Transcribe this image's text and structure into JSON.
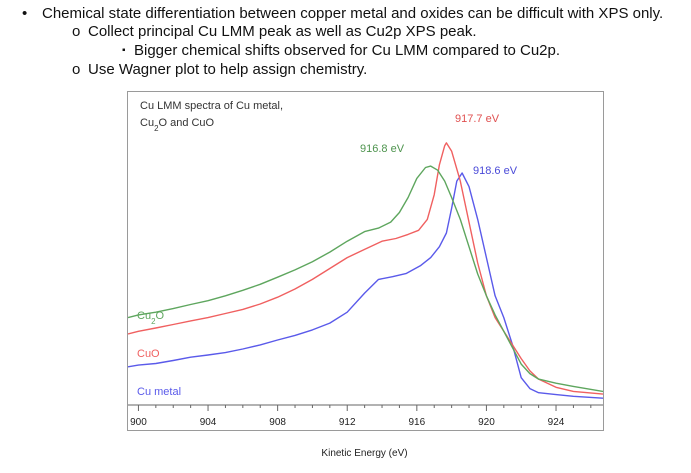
{
  "bullets": [
    {
      "marker": "•",
      "text": "Chemical state differentiation between copper metal and oxides can be difficult with XPS only."
    },
    {
      "marker": "o",
      "text": "Collect principal Cu LMM peak as well as Cu2p XPS peak."
    },
    {
      "marker": "▪",
      "text": "Bigger chemical shifts observed for Cu LMM compared to Cu2p."
    },
    {
      "marker": "o",
      "text": "Use Wagner plot to help assign chemistry."
    }
  ],
  "chart_data": {
    "type": "line",
    "title_line1": "Cu LMM spectra of Cu metal,",
    "title_line2_a": "Cu",
    "title_line2_sub": "2",
    "title_line2_b": "O and CuO",
    "xlabel": "Kinetic Energy (eV)",
    "ylabel": "",
    "xlim": [
      899.4,
      926.7
    ],
    "ylim": [
      0,
      100
    ],
    "xticks": [
      900,
      904,
      908,
      912,
      916,
      920,
      924
    ],
    "grid": false,
    "series": [
      {
        "name": "Cu metal",
        "color": "#5a5aea",
        "points": [
          [
            899.4,
            14
          ],
          [
            900,
            14.6
          ],
          [
            901,
            15.2
          ],
          [
            902,
            16.3
          ],
          [
            903,
            17.5
          ],
          [
            904,
            18.3
          ],
          [
            905,
            19.2
          ],
          [
            906,
            20.5
          ],
          [
            907,
            22
          ],
          [
            908,
            23.8
          ],
          [
            909,
            25.5
          ],
          [
            910,
            27.5
          ],
          [
            911,
            30
          ],
          [
            912,
            34
          ],
          [
            913,
            41
          ],
          [
            913.8,
            46
          ],
          [
            914.6,
            47
          ],
          [
            915.4,
            48.2
          ],
          [
            916.2,
            51
          ],
          [
            916.8,
            54
          ],
          [
            917.3,
            58
          ],
          [
            917.7,
            63
          ],
          [
            918,
            72
          ],
          [
            918.3,
            82
          ],
          [
            918.6,
            85
          ],
          [
            919,
            80
          ],
          [
            919.5,
            68
          ],
          [
            920,
            54
          ],
          [
            920.5,
            40
          ],
          [
            921,
            32
          ],
          [
            921.5,
            22
          ],
          [
            922,
            10
          ],
          [
            922.5,
            6
          ],
          [
            923,
            4.5
          ],
          [
            924,
            3.8
          ],
          [
            925,
            3.2
          ],
          [
            926.7,
            2.5
          ]
        ]
      },
      {
        "name": "CuO",
        "color": "#f06060",
        "points": [
          [
            899.4,
            26
          ],
          [
            900,
            27
          ],
          [
            901,
            28.2
          ],
          [
            902,
            29.5
          ],
          [
            903,
            30.8
          ],
          [
            904,
            32
          ],
          [
            905,
            33.5
          ],
          [
            906,
            35
          ],
          [
            907,
            37
          ],
          [
            908,
            39.5
          ],
          [
            909,
            42.5
          ],
          [
            910,
            46
          ],
          [
            911,
            50
          ],
          [
            912,
            54
          ],
          [
            913,
            57
          ],
          [
            914,
            60
          ],
          [
            914.8,
            61
          ],
          [
            915.5,
            62.5
          ],
          [
            916.1,
            64
          ],
          [
            916.6,
            68
          ],
          [
            917,
            77
          ],
          [
            917.3,
            88
          ],
          [
            917.6,
            95
          ],
          [
            917.7,
            96
          ],
          [
            918,
            93
          ],
          [
            918.5,
            82
          ],
          [
            919,
            67
          ],
          [
            919.5,
            52
          ],
          [
            920,
            40
          ],
          [
            920.5,
            32
          ],
          [
            921,
            27
          ],
          [
            921.5,
            22
          ],
          [
            922,
            17
          ],
          [
            922.5,
            12.5
          ],
          [
            923,
            9.5
          ],
          [
            924,
            6.5
          ],
          [
            925,
            5
          ],
          [
            926.7,
            4
          ]
        ]
      },
      {
        "name": "Cu",
        "name_sub": "2",
        "name_post": "O",
        "color": "#5ea65e",
        "points": [
          [
            899.4,
            32
          ],
          [
            900,
            33
          ],
          [
            901,
            34
          ],
          [
            902,
            35.3
          ],
          [
            903,
            36.8
          ],
          [
            904,
            38.2
          ],
          [
            905,
            40
          ],
          [
            906,
            42
          ],
          [
            907,
            44.2
          ],
          [
            908,
            46.8
          ],
          [
            909,
            49.5
          ],
          [
            910,
            52.5
          ],
          [
            911,
            56
          ],
          [
            912,
            60
          ],
          [
            913,
            63.5
          ],
          [
            913.8,
            64.8
          ],
          [
            914.5,
            67
          ],
          [
            915,
            70.5
          ],
          [
            915.5,
            76
          ],
          [
            916,
            83
          ],
          [
            916.5,
            87
          ],
          [
            916.8,
            87.5
          ],
          [
            917.2,
            86
          ],
          [
            917.6,
            82
          ],
          [
            918,
            76
          ],
          [
            918.5,
            68
          ],
          [
            919,
            58
          ],
          [
            919.5,
            48
          ],
          [
            920,
            40
          ],
          [
            920.5,
            33
          ],
          [
            921,
            27
          ],
          [
            921.5,
            21
          ],
          [
            922,
            15
          ],
          [
            922.5,
            11.5
          ],
          [
            923,
            9.5
          ],
          [
            924,
            8
          ],
          [
            925,
            6.8
          ],
          [
            926.7,
            5
          ]
        ]
      }
    ],
    "annotations": [
      {
        "text": "916.8 eV",
        "color": "#4e944e"
      },
      {
        "text": "917.7 eV",
        "color": "#e05050"
      },
      {
        "text": "918.6 eV",
        "color": "#4a4ad8"
      }
    ]
  }
}
